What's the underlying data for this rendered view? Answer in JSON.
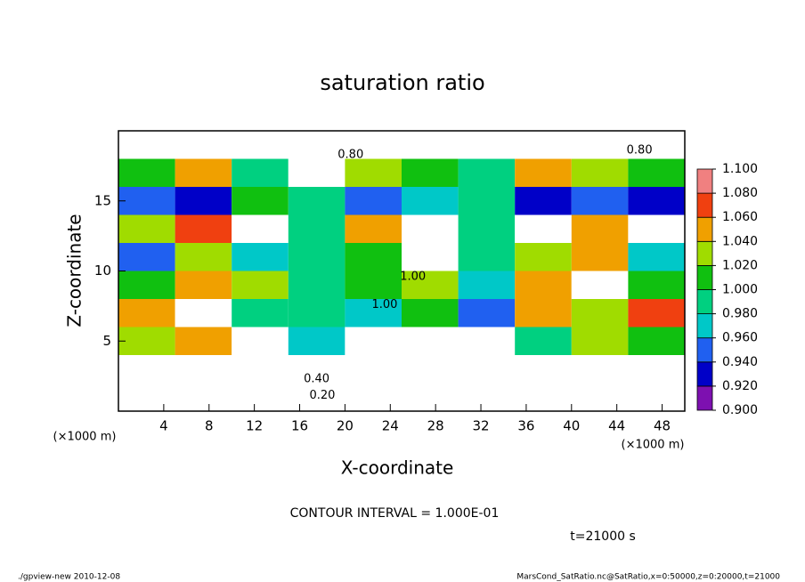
{
  "chart_data": {
    "type": "contour",
    "title": "saturation ratio",
    "xlabel": "X-coordinate",
    "ylabel": "Z-coordinate",
    "x_unit": "(×1000 m)",
    "xlim": [
      0,
      50
    ],
    "ylim": [
      0,
      20
    ],
    "xticks": [
      4,
      8,
      12,
      16,
      20,
      24,
      28,
      32,
      36,
      40,
      44,
      48
    ],
    "yticks": [
      5,
      10,
      15
    ],
    "x": [
      2.5,
      7.5,
      12.5,
      17.5,
      22.5,
      27.5,
      32.5,
      37.5,
      42.5,
      47.5
    ],
    "z": [
      1,
      3,
      5,
      7,
      9,
      11,
      13,
      15,
      17,
      19
    ],
    "values": [
      [
        0.2,
        0.2,
        0.2,
        0.2,
        0.2,
        0.2,
        0.2,
        0.2,
        0.2,
        0.2
      ],
      [
        0.5,
        0.55,
        0.5,
        0.5,
        0.55,
        0.5,
        0.5,
        0.55,
        0.5,
        0.5
      ],
      [
        1.04,
        1.06,
        1.12,
        0.98,
        1.12,
        1.15,
        1.12,
        1.0,
        1.04,
        1.02
      ],
      [
        1.06,
        1.12,
        1.0,
        1.0,
        0.98,
        1.02,
        0.95,
        1.06,
        1.04,
        1.08
      ],
      [
        1.02,
        1.06,
        1.04,
        1.0,
        1.02,
        1.04,
        0.98,
        1.06,
        1.12,
        1.02
      ],
      [
        0.96,
        1.04,
        0.98,
        1.0,
        1.02,
        1.12,
        1.0,
        1.04,
        1.06,
        0.98
      ],
      [
        1.04,
        1.08,
        1.12,
        1.0,
        1.06,
        1.12,
        1.0,
        1.12,
        1.06,
        1.12
      ],
      [
        0.95,
        0.94,
        1.02,
        1.0,
        0.96,
        0.98,
        1.0,
        0.94,
        0.96,
        0.94
      ],
      [
        1.02,
        1.06,
        1.0,
        1.12,
        1.04,
        1.02,
        1.0,
        1.06,
        1.04,
        1.02
      ],
      [
        0.7,
        0.75,
        0.8,
        0.6,
        0.8,
        0.85,
        0.8,
        0.7,
        0.8,
        0.75
      ]
    ],
    "colorbar": {
      "levels": [
        {
          "value": 0.9,
          "label": "0.900"
        },
        {
          "value": 0.92,
          "label": "0.920"
        },
        {
          "value": 0.94,
          "label": "0.940"
        },
        {
          "value": 0.96,
          "label": "0.960"
        },
        {
          "value": 0.98,
          "label": "0.980"
        },
        {
          "value": 1.0,
          "label": "1.000"
        },
        {
          "value": 1.02,
          "label": "1.020"
        },
        {
          "value": 1.04,
          "label": "1.040"
        },
        {
          "value": 1.06,
          "label": "1.060"
        },
        {
          "value": 1.08,
          "label": "1.080"
        },
        {
          "value": 1.1,
          "label": "1.100"
        }
      ],
      "colors": [
        "#7d10b0",
        "#0000c8",
        "#2060f0",
        "#00c8c8",
        "#00d080",
        "#10c010",
        "#a0dc00",
        "#f0a000",
        "#f04010",
        "#f08080"
      ]
    },
    "contour_labels": [
      {
        "value": 0.2,
        "label": "0.20",
        "x": 18,
        "z": 1.1
      },
      {
        "value": 0.4,
        "label": "0.40",
        "x": 17.5,
        "z": 2.3
      },
      {
        "value": 0.8,
        "label": "0.80",
        "x": 20.5,
        "z": 18.3
      },
      {
        "value": 0.8,
        "label": "0.80",
        "x": 46,
        "z": 18.6
      },
      {
        "value": 1.0,
        "label": "1.00",
        "x": 26,
        "z": 9.6
      },
      {
        "value": 1.0,
        "label": "1.00",
        "x": 23.5,
        "z": 7.6
      }
    ],
    "contour_interval_text": "CONTOUR INTERVAL = 1.000E-01",
    "time_text": "t=21000 s",
    "footer_left": "./gpview-new  2010-12-08",
    "footer_right": "MarsCond_SatRatio.nc@SatRatio,x=0:50000,z=0:20000,t=21000"
  }
}
